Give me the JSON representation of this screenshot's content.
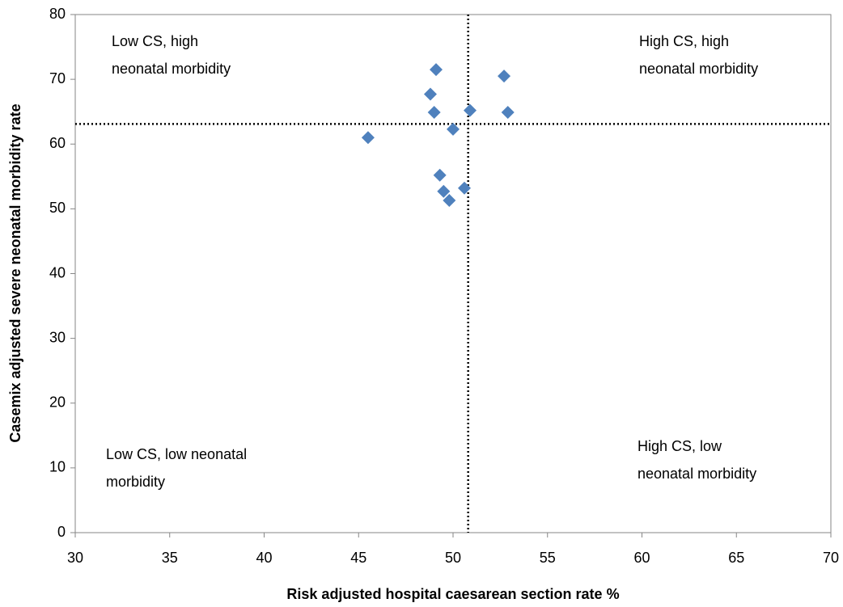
{
  "chart_data": {
    "type": "scatter",
    "x_label": "Risk adjusted hospital caesarean section rate %",
    "y_label": "Casemix adjusted severe neonatal morbidity rate",
    "xlim": [
      30,
      70
    ],
    "xticks": [
      30,
      35,
      40,
      45,
      50,
      55,
      60,
      65,
      70
    ],
    "ylim": [
      0,
      80
    ],
    "yticks": [
      0,
      10,
      20,
      30,
      40,
      50,
      60,
      70,
      80
    ],
    "grid": false,
    "reference_x": 50.8,
    "reference_y": 63.1,
    "annotations": [
      {
        "lines": [
          "Low CS, high",
          "neonatal morbidity"
        ]
      },
      {
        "lines": [
          "High CS, high",
          "neonatal morbidity"
        ]
      },
      {
        "lines": [
          "Low CS, low neonatal",
          "morbidity"
        ]
      },
      {
        "lines": [
          "High CS, low",
          "neonatal morbidity"
        ]
      }
    ],
    "series": [
      {
        "color": "#4f81bd",
        "x": [
          49.1,
          52.7,
          48.8,
          49.0,
          50.9,
          52.9,
          50.0,
          45.5,
          49.3,
          50.6,
          49.5,
          49.8
        ],
        "values": [
          71.5,
          70.5,
          67.7,
          64.9,
          65.2,
          64.9,
          62.3,
          61.0,
          55.2,
          53.2,
          52.7,
          51.3
        ]
      }
    ]
  }
}
